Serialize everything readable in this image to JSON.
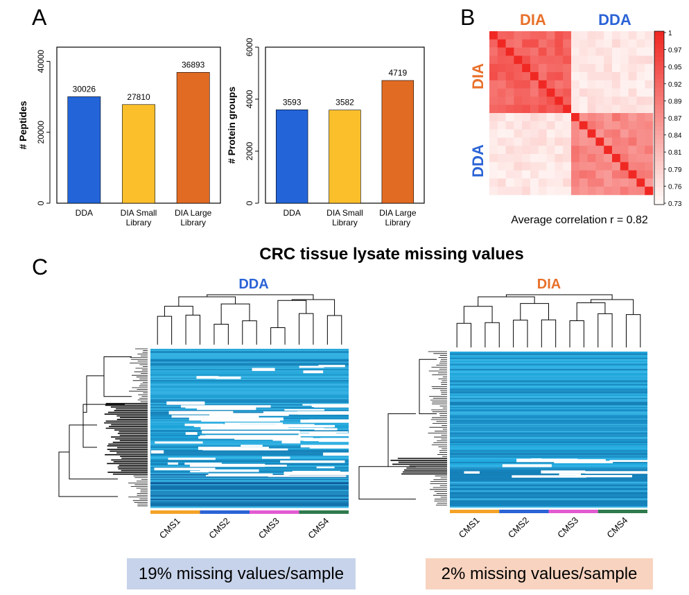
{
  "panels": {
    "a": "A",
    "b": "B",
    "c": "C"
  },
  "colors": {
    "dda": "#2364d9",
    "dia_small": "#fbbf2b",
    "dia_large": "#e26b23",
    "dda_text": "#2b63d6",
    "dia_text": "#e8702a",
    "cms1": "#f4a227",
    "cms2": "#2b63d6",
    "cms3": "#e25ad0",
    "cms4": "#2f7a4c",
    "missing_dda_box": "#c7d3ea",
    "missing_dia_box": "#f8d3bf"
  },
  "chart_data": [
    {
      "id": "peptides",
      "type": "bar",
      "categories": [
        "DDA",
        "DIA Small\nLibrary",
        "DIA Large\nLibrary"
      ],
      "values": [
        30026,
        27810,
        36893
      ],
      "value_labels": [
        "30026",
        "27810",
        "36893"
      ],
      "ylabel": "# Peptides",
      "ylim": [
        0,
        44000
      ],
      "yticks": [
        "0",
        "20000",
        "40000"
      ],
      "ytick_values": [
        0,
        20000,
        40000
      ]
    },
    {
      "id": "protein_groups",
      "type": "bar",
      "categories": [
        "DDA",
        "DIA Small\nLibrary",
        "DIA Large\nLibrary"
      ],
      "values": [
        3593,
        3582,
        4719
      ],
      "value_labels": [
        "3593",
        "3582",
        "4719"
      ],
      "ylabel": "# Protein groups",
      "ylim": [
        0,
        6000
      ],
      "yticks": [
        "0",
        "2000",
        "4000",
        "6000"
      ],
      "ytick_values": [
        0,
        2000,
        4000,
        6000
      ]
    },
    {
      "id": "correlation",
      "type": "heatmap",
      "groups": [
        "DIA",
        "DDA"
      ],
      "colorbar_ticks": [
        "1",
        "0.97",
        "0.95",
        "0.92",
        "0.89",
        "0.87",
        "0.84",
        "0.81",
        "0.79",
        "0.76",
        "0.73"
      ],
      "caption": "Average correlation r = 0.82"
    },
    {
      "id": "missing_dda",
      "type": "heatmap",
      "title": "DDA",
      "subtypes": [
        "CMS1",
        "CMS2",
        "CMS3",
        "CMS4"
      ],
      "summary": "19% missing values/sample"
    },
    {
      "id": "missing_dia",
      "type": "heatmap",
      "title": "DIA",
      "subtypes": [
        "CMS1",
        "CMS2",
        "CMS3",
        "CMS4"
      ],
      "summary": "2% missing values/sample"
    }
  ],
  "section_c_title": "CRC tissue lysate missing values"
}
